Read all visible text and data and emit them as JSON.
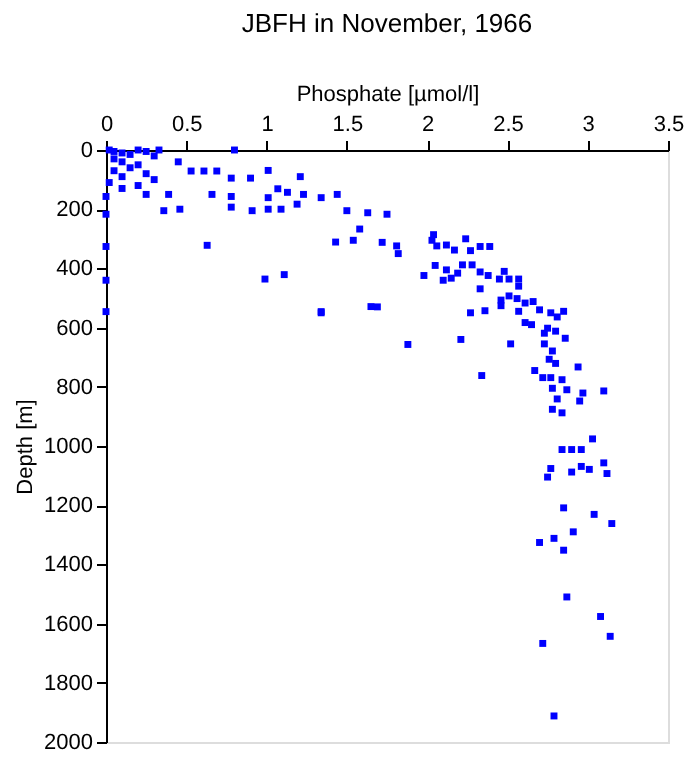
{
  "chart_data": {
    "type": "scatter",
    "title": "JBFH in November, 1966",
    "xlabel": "Phosphate [µmol/l]",
    "ylabel": "Depth [m]",
    "xlim": [
      0,
      3.5
    ],
    "xticks": [
      0,
      0.5,
      1,
      1.5,
      2,
      2.5,
      3,
      3.5
    ],
    "ylim": [
      2000,
      0
    ],
    "yticks": [
      0,
      200,
      400,
      600,
      800,
      1000,
      1200,
      1400,
      1600,
      1800,
      2000
    ],
    "grid": false,
    "legend": false,
    "marker": "square",
    "series": [
      {
        "color": "#0000ff",
        "x": [
          0.02,
          0.05,
          0.1,
          0.15,
          0.2,
          0.25,
          0.3,
          0.05,
          0.1,
          0.2,
          0.15,
          0.05,
          0.1,
          0.25,
          0.02,
          0.1,
          0.2,
          0.3,
          0.8,
          0.33,
          1.01,
          0.45,
          0.53,
          0.61,
          0.69,
          0.78,
          0.9,
          1.21,
          1.07,
          1.13,
          1.23,
          1.34,
          1.44,
          0.25,
          0.39,
          0.66,
          0.78,
          1.01,
          1.19,
          1.5,
          1.63,
          1.75,
          0.36,
          0.46,
          0.78,
          0.91,
          1.01,
          1.09,
          0,
          0,
          0,
          0,
          0,
          0.63,
          0.99,
          1.11,
          1.34,
          1.69,
          1.58,
          1.54,
          1.72,
          1.43,
          1.81,
          1.82,
          2.04,
          2.03,
          2.06,
          2.12,
          2.17,
          2.24,
          2.27,
          2.33,
          2.39,
          2.05,
          2.12,
          2.22,
          2.28,
          2.33,
          2.38,
          2.48,
          1.98,
          2.1,
          2.15,
          2.19,
          2.45,
          2.51,
          2.57,
          2.57,
          2.33,
          2.46,
          2.51,
          2.56,
          2.61,
          2.66,
          2.46,
          2.57,
          2.7,
          2.77,
          2.81,
          2.85,
          2.27,
          2.36,
          1.65,
          1.34,
          2.61,
          2.65,
          2.75,
          2.8,
          2.73,
          2.86,
          1.88,
          2.21,
          2.52,
          2.73,
          2.78,
          2.76,
          2.8,
          2.94,
          2.67,
          2.34,
          2.72,
          2.77,
          2.84,
          2.78,
          2.87,
          2.97,
          3.1,
          2.95,
          2.81,
          2.78,
          2.84,
          3.03,
          2.84,
          2.9,
          2.96,
          3.1,
          2.77,
          2.96,
          3.01,
          2.9,
          3.12,
          2.75,
          2.85,
          3.04,
          3.15,
          2.91,
          2.79,
          2.7,
          2.85,
          2.87,
          3.08,
          3.14,
          2.72,
          2.79
        ],
        "values": [
          0,
          5,
          10,
          15,
          0,
          5,
          20,
          30,
          40,
          50,
          60,
          70,
          90,
          80,
          110,
          130,
          120,
          100,
          0,
          0,
          69,
          40,
          71,
          71,
          71,
          95,
          95,
          90,
          131,
          143,
          150,
          161,
          150,
          150,
          150,
          150,
          157,
          161,
          183,
          205,
          212,
          217,
          205,
          200,
          193,
          205,
          200,
          200,
          157,
          217,
          326,
          440,
          546,
          322,
          436,
          421,
          546,
          530,
          267,
          305,
          312,
          311,
          324,
          350,
          286,
          305,
          324,
          321,
          338,
          300,
          340,
          326,
          326,
          390,
          405,
          388,
          388,
          412,
          424,
          410,
          424,
          440,
          433,
          416,
          436,
          436,
          436,
          460,
          469,
          507,
          493,
          502,
          517,
          512,
          526,
          545,
          540,
          550,
          564,
          545,
          550,
          543,
          529,
          550,
          583,
          590,
          602,
          612,
          619,
          636,
          657,
          640,
          655,
          655,
          679,
          707,
          721,
          733,
          745,
          762,
          769,
          769,
          776,
          805,
          810,
          821,
          814,
          848,
          841,
          876,
          888,
          976,
          1012,
          1012,
          1012,
          1057,
          1076,
          1069,
          1079,
          1088,
          1093,
          1105,
          1209,
          1231,
          1262,
          1290,
          1312,
          1326,
          1352,
          1510,
          1576,
          1643,
          1667,
          1912
        ]
      }
    ]
  }
}
